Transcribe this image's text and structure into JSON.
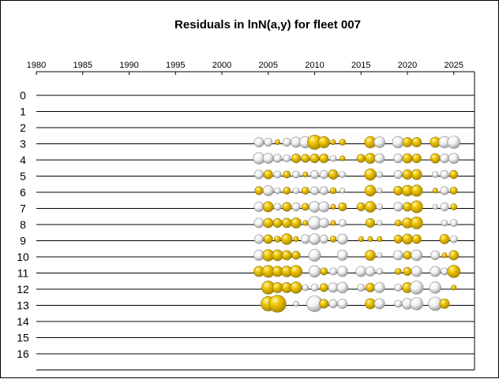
{
  "chart_data": {
    "type": "scatter",
    "title": "Residuals in lnN(a,y) for fleet 007",
    "xlabel": "",
    "ylabel": "",
    "x_ticks": [
      1980,
      1985,
      1990,
      1995,
      2000,
      2005,
      2010,
      2015,
      2020,
      2025
    ],
    "xlim": [
      1980,
      2027
    ],
    "y_ticks": [
      0,
      1,
      2,
      3,
      4,
      5,
      6,
      7,
      8,
      9,
      10,
      11,
      12,
      13,
      14,
      15,
      16
    ],
    "colors": {
      "positive": "#e6b800",
      "negative": "#eeeeee"
    },
    "note": "bubble size = |residual|; gold = positive, white = negative",
    "series": [
      {
        "age": 3,
        "years": [
          2004,
          2005,
          2006,
          2007,
          2008,
          2009,
          2010,
          2011,
          2012,
          2013,
          2016,
          2017,
          2019,
          2020,
          2021,
          2023,
          2024,
          2025
        ],
        "values": [
          -0.7,
          -0.5,
          0.2,
          -0.5,
          -0.8,
          -1.0,
          1.6,
          1.0,
          0.2,
          0.3,
          1.0,
          -0.9,
          -1.0,
          0.7,
          0.7,
          0.8,
          -1.0,
          -1.2
        ]
      },
      {
        "age": 4,
        "years": [
          2004,
          2005,
          2006,
          2007,
          2008,
          2009,
          2010,
          2011,
          2012,
          2013,
          2015,
          2016,
          2017,
          2019,
          2020,
          2021,
          2023,
          2024,
          2025
        ],
        "values": [
          -1.0,
          -0.8,
          -0.5,
          -0.4,
          0.6,
          0.5,
          0.6,
          0.6,
          -0.3,
          0.2,
          0.5,
          0.8,
          -0.7,
          -0.6,
          0.7,
          0.6,
          0.7,
          -0.6,
          -0.8
        ]
      },
      {
        "age": 5,
        "years": [
          2004,
          2005,
          2006,
          2007,
          2008,
          2009,
          2010,
          2011,
          2012,
          2013,
          2016,
          2017,
          2019,
          2020,
          2021,
          2023,
          2024,
          2025
        ],
        "values": [
          -0.6,
          0.6,
          -0.4,
          0.4,
          -0.4,
          0.2,
          -0.5,
          -0.5,
          0.7,
          -0.3,
          1.0,
          -0.3,
          -0.5,
          0.7,
          0.8,
          -0.3,
          -0.5,
          0.5
        ]
      },
      {
        "age": 6,
        "years": [
          2004,
          2005,
          2006,
          2007,
          2008,
          2009,
          2010,
          2011,
          2012,
          2013,
          2016,
          2017,
          2019,
          2020,
          2021,
          2023,
          2024,
          2025
        ],
        "values": [
          0.5,
          -0.8,
          -0.3,
          0.4,
          -0.3,
          0.4,
          -0.5,
          -0.5,
          0.3,
          -0.2,
          0.9,
          -0.2,
          0.6,
          0.9,
          1.0,
          0.2,
          -0.5,
          0.4
        ]
      },
      {
        "age": 7,
        "years": [
          2004,
          2005,
          2006,
          2007,
          2008,
          2009,
          2010,
          2011,
          2012,
          2013,
          2015,
          2016,
          2017,
          2019,
          2020,
          2021,
          2023,
          2024,
          2025
        ],
        "values": [
          -0.7,
          0.8,
          -0.4,
          0.6,
          -0.5,
          0.4,
          -0.9,
          -0.8,
          0.2,
          0.5,
          0.5,
          0.9,
          -0.3,
          -0.6,
          0.6,
          1.1,
          -0.2,
          -0.5,
          0.3
        ]
      },
      {
        "age": 8,
        "years": [
          2004,
          2005,
          2006,
          2007,
          2008,
          2009,
          2010,
          2011,
          2012,
          2013,
          2016,
          2017,
          2019,
          2020,
          2021,
          2024,
          2025
        ],
        "values": [
          -0.7,
          0.7,
          0.6,
          0.7,
          0.8,
          0.2,
          -1.3,
          -0.7,
          0.2,
          -0.4,
          0.6,
          -0.2,
          0.3,
          0.8,
          1.1,
          -0.3,
          -0.4
        ]
      },
      {
        "age": 9,
        "years": [
          2004,
          2005,
          2006,
          2007,
          2008,
          2009,
          2010,
          2011,
          2012,
          2013,
          2015,
          2016,
          2017,
          2019,
          2020,
          2021,
          2024,
          2025
        ],
        "values": [
          -0.6,
          0.6,
          0.3,
          0.9,
          0.2,
          -0.6,
          -0.9,
          -0.5,
          0.3,
          -0.8,
          0.2,
          0.2,
          0.2,
          0.5,
          0.8,
          0.6,
          0.7,
          -0.4
        ]
      },
      {
        "age": 10,
        "years": [
          2004,
          2005,
          2006,
          2007,
          2008,
          2010,
          2013,
          2016,
          2017,
          2019,
          2020,
          2021,
          2023,
          2024,
          2025
        ],
        "values": [
          -0.8,
          1.0,
          0.9,
          0.7,
          0.5,
          -1.1,
          -0.8,
          0.8,
          -0.2,
          -0.7,
          0.5,
          -0.9,
          -0.6,
          0.2,
          0.7
        ]
      },
      {
        "age": 11,
        "years": [
          2004,
          2005,
          2006,
          2007,
          2008,
          2010,
          2011,
          2012,
          2013,
          2015,
          2016,
          2017,
          2019,
          2020,
          2021,
          2023,
          2024,
          2025
        ],
        "values": [
          0.8,
          1.1,
          0.8,
          0.9,
          1.1,
          -1.0,
          0.4,
          -0.4,
          -0.8,
          -0.8,
          -0.7,
          -0.3,
          0.3,
          0.5,
          -0.8,
          -0.8,
          -0.4,
          1.2
        ]
      },
      {
        "age": 12,
        "years": [
          2005,
          2006,
          2007,
          2008,
          2009,
          2010,
          2011,
          2012,
          2013,
          2015,
          2016,
          2017,
          2019,
          2020,
          2021,
          2023,
          2025
        ],
        "values": [
          1.3,
          0.8,
          0.8,
          1.0,
          -0.3,
          -0.4,
          0.5,
          -0.7,
          -0.9,
          -0.4,
          0.6,
          -0.8,
          -0.4,
          0.8,
          -1.3,
          -1.0,
          0.2
        ]
      },
      {
        "age": 13,
        "years": [
          2005,
          2006,
          2008,
          2010,
          2011,
          2012,
          2013,
          2016,
          2017,
          2019,
          2020,
          2021,
          2023,
          2024
        ],
        "values": [
          1.6,
          2.2,
          -0.2,
          -1.9,
          0.6,
          -0.5,
          -0.7,
          0.8,
          -0.8,
          -0.4,
          -0.9,
          -1.2,
          -1.4,
          0.7
        ]
      }
    ]
  }
}
